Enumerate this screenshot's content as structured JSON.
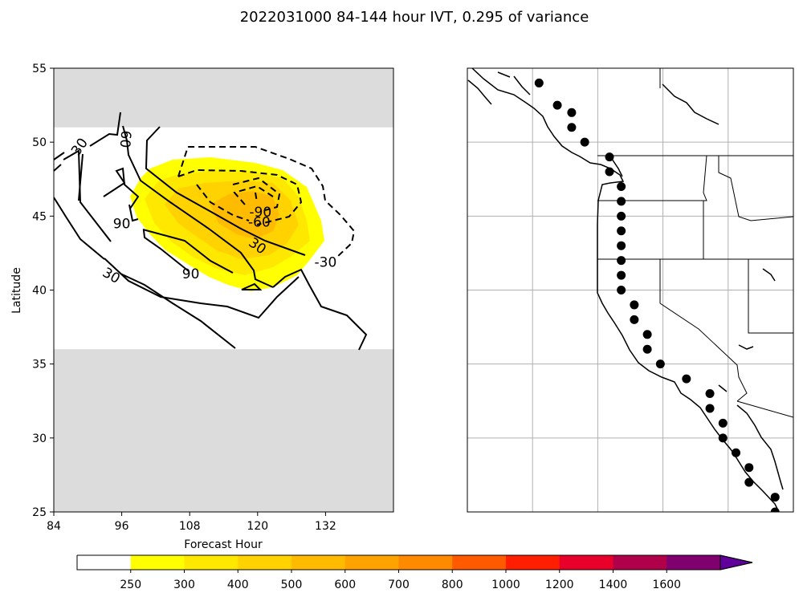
{
  "chart_data": [
    {
      "type": "contour",
      "title": "2022031000 84-144 hour IVT, 0.295 of variance",
      "xlabel": "Forecast Hour",
      "ylabel": "Latitude",
      "xlim": [
        84,
        144
      ],
      "ylim": [
        25,
        55
      ],
      "xticks": [
        "84",
        "96",
        "108",
        "120",
        "132"
      ],
      "yticks": [
        "25",
        "30",
        "35",
        "40",
        "45",
        "50",
        "55"
      ],
      "masked_latitude_bands": [
        [
          25,
          36
        ],
        [
          51,
          55
        ]
      ],
      "contour_labels": [
        {
          "text": "30",
          "x": 88.5,
          "y": 49.7,
          "rotation": -55
        },
        {
          "text": "60",
          "x": 96.7,
          "y": 50.2,
          "rotation": 95
        },
        {
          "text": "90",
          "x": 96,
          "y": 44.5,
          "rotation": 0
        },
        {
          "text": "90",
          "x": 108.2,
          "y": 41.1,
          "rotation": 0
        },
        {
          "text": "30",
          "x": 94.2,
          "y": 41,
          "rotation": 30
        },
        {
          "text": "30",
          "x": 120,
          "y": 43,
          "rotation": 35
        },
        {
          "text": "-90",
          "x": 120.5,
          "y": 45.3,
          "rotation": 0
        },
        {
          "text": "-60",
          "x": 120.3,
          "y": 44.6,
          "rotation": 0
        },
        {
          "text": "-30",
          "x": 132,
          "y": 41.9,
          "rotation": 0
        }
      ],
      "filled_levels": [
        {
          "level": 250,
          "color": "#ffff00"
        },
        {
          "level": 300,
          "color": "#ffe800"
        },
        {
          "level": 400,
          "color": "#ffd200"
        },
        {
          "level": 500,
          "color": "#ffbb00"
        }
      ]
    },
    {
      "type": "map",
      "region": "US West Coast",
      "lon_range": [
        -135,
        -110
      ],
      "lat_range": [
        25,
        55
      ],
      "gridlines": true,
      "points": [
        {
          "lon": -129.5,
          "lat": 54
        },
        {
          "lon": -128.1,
          "lat": 52.5
        },
        {
          "lon": -127,
          "lat": 52
        },
        {
          "lon": -127,
          "lat": 51
        },
        {
          "lon": -126,
          "lat": 50
        },
        {
          "lon": -124.1,
          "lat": 49
        },
        {
          "lon": -124.1,
          "lat": 48
        },
        {
          "lon": -123.2,
          "lat": 47
        },
        {
          "lon": -123.2,
          "lat": 46
        },
        {
          "lon": -123.2,
          "lat": 45
        },
        {
          "lon": -123.2,
          "lat": 44
        },
        {
          "lon": -123.2,
          "lat": 43
        },
        {
          "lon": -123.2,
          "lat": 42
        },
        {
          "lon": -123.2,
          "lat": 41
        },
        {
          "lon": -123.2,
          "lat": 40
        },
        {
          "lon": -122.2,
          "lat": 39
        },
        {
          "lon": -122.2,
          "lat": 38
        },
        {
          "lon": -121.2,
          "lat": 37
        },
        {
          "lon": -121.2,
          "lat": 36
        },
        {
          "lon": -120.2,
          "lat": 35
        },
        {
          "lon": -118.2,
          "lat": 34
        },
        {
          "lon": -116.4,
          "lat": 33
        },
        {
          "lon": -116.4,
          "lat": 32
        },
        {
          "lon": -115.4,
          "lat": 31
        },
        {
          "lon": -115.4,
          "lat": 30
        },
        {
          "lon": -114.4,
          "lat": 29
        },
        {
          "lon": -113.4,
          "lat": 28
        },
        {
          "lon": -113.4,
          "lat": 27
        },
        {
          "lon": -111.4,
          "lat": 26
        },
        {
          "lon": -111.4,
          "lat": 25
        }
      ]
    },
    {
      "type": "colorbar",
      "ticks": [
        "250",
        "300",
        "400",
        "500",
        "600",
        "700",
        "800",
        "1000",
        "1200",
        "1400",
        "1600"
      ],
      "colors": [
        "#ffffff",
        "#ffff00",
        "#ffe800",
        "#ffd200",
        "#ffbb00",
        "#ffa300",
        "#ff8a00",
        "#ff5a00",
        "#ff1e00",
        "#e8002a",
        "#b0004a",
        "#800070",
        "#60009a"
      ],
      "extend": "max"
    }
  ]
}
